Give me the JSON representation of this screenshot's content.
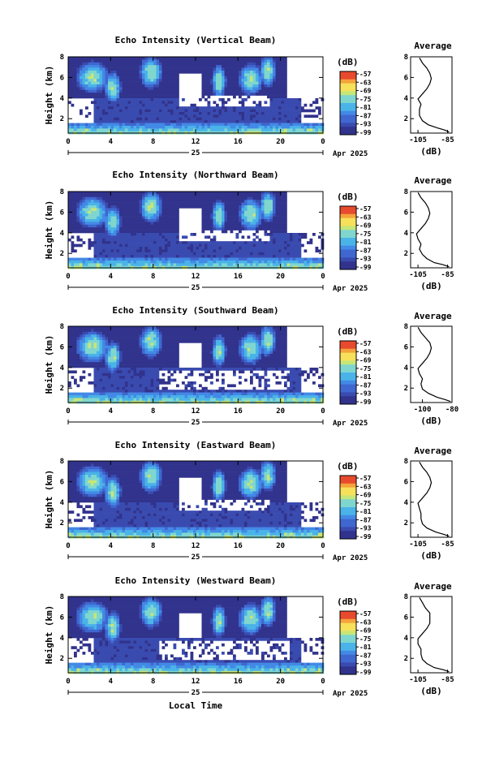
{
  "chart_data": [
    {
      "type": "heatmap",
      "title": "Echo Intensity (Vertical Beam)",
      "ylabel": "Height (km)",
      "xlabel": "",
      "x_ticks": [
        "0",
        "4",
        "8",
        "12",
        "16",
        "20",
        "0"
      ],
      "x_date_mark": "25",
      "x_date_label": "Apr 2025",
      "y_ticks": [
        "2",
        "4",
        "6",
        "8"
      ],
      "xlim": [
        0,
        24
      ],
      "ylim": [
        0.6,
        8.0
      ],
      "colorbar": {
        "unit": "(dB)",
        "ticks": [
          "-57",
          "-63",
          "-69",
          "-75",
          "-81",
          "-87",
          "-93",
          "-99"
        ]
      },
      "profile": {
        "title": "Average",
        "xlabel": "(dB)",
        "x_ticks": [
          "-105",
          "-85"
        ],
        "y_ticks": [
          "2",
          "4",
          "6",
          "8"
        ],
        "xlim": [
          -110,
          -82
        ],
        "ylim": [
          0.6,
          8.0
        ],
        "points": [
          [
            -84,
            0.7
          ],
          [
            -87,
            0.9
          ],
          [
            -92,
            1.1
          ],
          [
            -98,
            1.4
          ],
          [
            -102,
            1.8
          ],
          [
            -104,
            2.3
          ],
          [
            -104,
            2.9
          ],
          [
            -103,
            3.4
          ],
          [
            -105,
            3.9
          ],
          [
            -102,
            4.4
          ],
          [
            -99,
            4.9
          ],
          [
            -97,
            5.4
          ],
          [
            -96,
            5.9
          ],
          [
            -97,
            6.4
          ],
          [
            -99,
            6.9
          ],
          [
            -102,
            7.4
          ],
          [
            -104,
            7.9
          ]
        ]
      }
    },
    {
      "type": "heatmap",
      "title": "Echo Intensity (Northward Beam)",
      "ylabel": "Height (km)",
      "xlabel": "",
      "x_ticks": [
        "0",
        "4",
        "8",
        "12",
        "16",
        "20",
        "0"
      ],
      "x_date_mark": "25",
      "x_date_label": "Apr 2025",
      "y_ticks": [
        "2",
        "4",
        "6",
        "8"
      ],
      "xlim": [
        0,
        24
      ],
      "ylim": [
        0.6,
        8.0
      ],
      "colorbar": {
        "unit": "(dB)",
        "ticks": [
          "-57",
          "-63",
          "-69",
          "-75",
          "-81",
          "-87",
          "-93",
          "-99"
        ]
      },
      "profile": {
        "title": "Average",
        "xlabel": "(dB)",
        "x_ticks": [
          "-105",
          "-85"
        ],
        "y_ticks": [
          "2",
          "4",
          "6",
          "8"
        ],
        "xlim": [
          -110,
          -82
        ],
        "ylim": [
          0.6,
          8.0
        ],
        "points": [
          [
            -84,
            0.7
          ],
          [
            -88,
            0.9
          ],
          [
            -94,
            1.1
          ],
          [
            -99,
            1.5
          ],
          [
            -102,
            1.9
          ],
          [
            -104,
            2.4
          ],
          [
            -103,
            2.9
          ],
          [
            -105,
            3.4
          ],
          [
            -106,
            3.9
          ],
          [
            -103,
            4.4
          ],
          [
            -100,
            4.9
          ],
          [
            -98,
            5.4
          ],
          [
            -97,
            5.9
          ],
          [
            -98,
            6.4
          ],
          [
            -100,
            6.9
          ],
          [
            -103,
            7.4
          ],
          [
            -105,
            7.9
          ]
        ]
      }
    },
    {
      "type": "heatmap",
      "title": "Echo Intensity (Southward Beam)",
      "ylabel": "Height (km)",
      "xlabel": "",
      "x_ticks": [
        "0",
        "4",
        "8",
        "12",
        "16",
        "20",
        "0"
      ],
      "x_date_mark": "25",
      "x_date_label": "Apr 2025",
      "y_ticks": [
        "2",
        "4",
        "6",
        "8"
      ],
      "xlim": [
        0,
        24
      ],
      "ylim": [
        0.6,
        8.0
      ],
      "colorbar": {
        "unit": "(dB)",
        "ticks": [
          "-57",
          "-63",
          "-69",
          "-75",
          "-81",
          "-87",
          "-93",
          "-99"
        ]
      },
      "profile": {
        "title": "Average",
        "xlabel": "(dB)",
        "x_ticks": [
          "-100",
          "-80"
        ],
        "y_ticks": [
          "2",
          "4",
          "6",
          "8"
        ],
        "xlim": [
          -108,
          -80
        ],
        "ylim": [
          0.6,
          8.0
        ],
        "points": [
          [
            -81,
            0.7
          ],
          [
            -85,
            0.9
          ],
          [
            -90,
            1.1
          ],
          [
            -96,
            1.5
          ],
          [
            -100,
            1.9
          ],
          [
            -101,
            2.4
          ],
          [
            -100,
            2.9
          ],
          [
            -102,
            3.4
          ],
          [
            -103,
            3.9
          ],
          [
            -100,
            4.4
          ],
          [
            -97,
            4.9
          ],
          [
            -95,
            5.4
          ],
          [
            -94,
            5.9
          ],
          [
            -95,
            6.4
          ],
          [
            -98,
            6.9
          ],
          [
            -101,
            7.4
          ],
          [
            -103,
            7.9
          ]
        ]
      }
    },
    {
      "type": "heatmap",
      "title": "Echo Intensity (Eastward Beam)",
      "ylabel": "Height (km)",
      "xlabel": "",
      "x_ticks": [
        "0",
        "4",
        "8",
        "12",
        "16",
        "20",
        "0"
      ],
      "x_date_mark": "25",
      "x_date_label": "Apr 2025",
      "y_ticks": [
        "2",
        "4",
        "6",
        "8"
      ],
      "xlim": [
        0,
        24
      ],
      "ylim": [
        0.6,
        8.0
      ],
      "colorbar": {
        "unit": "(dB)",
        "ticks": [
          "-57",
          "-63",
          "-69",
          "-75",
          "-81",
          "-87",
          "-93",
          "-99"
        ]
      },
      "profile": {
        "title": "Average",
        "xlabel": "(dB)",
        "x_ticks": [
          "-105",
          "-85"
        ],
        "y_ticks": [
          "2",
          "4",
          "6",
          "8"
        ],
        "xlim": [
          -110,
          -82
        ],
        "ylim": [
          0.6,
          8.0
        ],
        "points": [
          [
            -84,
            0.7
          ],
          [
            -88,
            0.9
          ],
          [
            -93,
            1.1
          ],
          [
            -99,
            1.5
          ],
          [
            -102,
            1.9
          ],
          [
            -103,
            2.4
          ],
          [
            -103,
            2.9
          ],
          [
            -104,
            3.4
          ],
          [
            -105,
            3.9
          ],
          [
            -102,
            4.4
          ],
          [
            -99,
            4.9
          ],
          [
            -97,
            5.4
          ],
          [
            -96,
            5.9
          ],
          [
            -97,
            6.4
          ],
          [
            -99,
            6.9
          ],
          [
            -102,
            7.4
          ],
          [
            -104,
            7.9
          ]
        ]
      }
    },
    {
      "type": "heatmap",
      "title": "Echo Intensity (Westward Beam)",
      "ylabel": "Height (km)",
      "xlabel": "Local Time",
      "x_ticks": [
        "0",
        "4",
        "8",
        "12",
        "16",
        "20",
        "0"
      ],
      "x_date_mark": "25",
      "x_date_label": "Apr 2025",
      "y_ticks": [
        "2",
        "4",
        "6",
        "8"
      ],
      "xlim": [
        0,
        24
      ],
      "ylim": [
        0.6,
        8.0
      ],
      "colorbar": {
        "unit": "(dB)",
        "ticks": [
          "-57",
          "-63",
          "-69",
          "-75",
          "-81",
          "-87",
          "-93",
          "-99"
        ]
      },
      "profile": {
        "title": "Average",
        "xlabel": "(dB)",
        "x_ticks": [
          "-105",
          "-85"
        ],
        "y_ticks": [
          "2",
          "4",
          "6",
          "8"
        ],
        "xlim": [
          -110,
          -82
        ],
        "ylim": [
          0.6,
          8.0
        ],
        "points": [
          [
            -84,
            0.7
          ],
          [
            -88,
            0.9
          ],
          [
            -94,
            1.1
          ],
          [
            -99,
            1.5
          ],
          [
            -102,
            1.9
          ],
          [
            -103,
            2.4
          ],
          [
            -103,
            2.9
          ],
          [
            -105,
            3.4
          ],
          [
            -105,
            3.9
          ],
          [
            -102,
            4.4
          ],
          [
            -99,
            4.9
          ],
          [
            -97,
            5.4
          ],
          [
            -97,
            5.9
          ],
          [
            -97,
            6.4
          ],
          [
            -100,
            6.9
          ],
          [
            -102,
            7.4
          ],
          [
            -104,
            7.9
          ]
        ]
      }
    }
  ],
  "colors": {
    "scale": [
      "#31338c",
      "#3a4bb0",
      "#3f67cf",
      "#4389e6",
      "#4ab3e8",
      "#7fd6cf",
      "#c7e678",
      "#f7e05a",
      "#f5a33a",
      "#e84a2e"
    ]
  }
}
